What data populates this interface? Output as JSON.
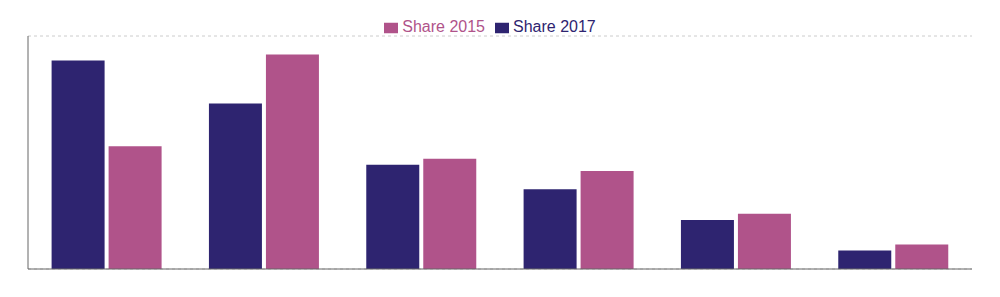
{
  "chart_data": {
    "type": "bar",
    "categories": [
      null,
      null,
      null,
      null,
      null,
      null
    ],
    "series": [
      {
        "name": "Share 2017",
        "color": "#2e2470",
        "values": [
          34,
          27,
          17,
          13,
          8,
          3
        ]
      },
      {
        "name": "Share 2015",
        "color": "#b0538a",
        "values": [
          20,
          35,
          18,
          16,
          9,
          4
        ]
      }
    ],
    "ylim": [
      0,
      38
    ],
    "yticks": [
      0,
      5,
      10,
      15,
      20,
      25,
      30,
      35
    ],
    "grid": true,
    "legend": "top",
    "tick_labels": false
  }
}
